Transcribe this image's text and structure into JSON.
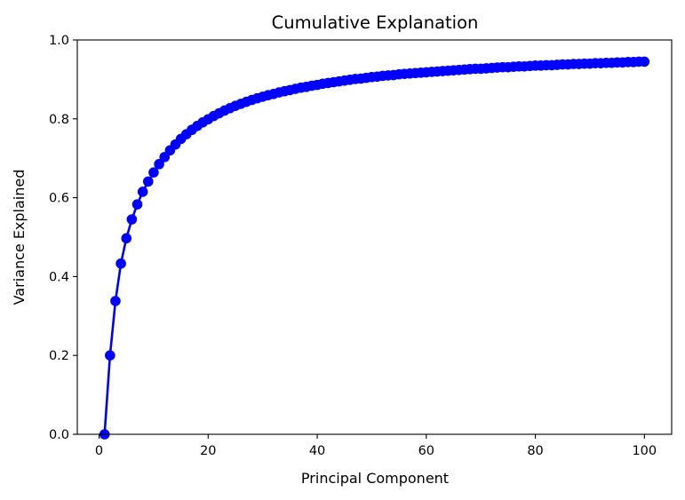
{
  "chart_data": {
    "type": "line",
    "title": "Cumulative Explanation",
    "xlabel": "Principal Component",
    "ylabel": "Variance Explained",
    "xlim": [
      -4,
      105
    ],
    "ylim": [
      0.0,
      1.0
    ],
    "x_ticks": [
      0,
      20,
      40,
      60,
      80,
      100
    ],
    "y_ticks": [
      0.0,
      0.2,
      0.4,
      0.6,
      0.8,
      1.0
    ],
    "x_tick_labels": [
      "0",
      "20",
      "40",
      "60",
      "80",
      "100"
    ],
    "y_tick_labels": [
      "0.0",
      "0.2",
      "0.4",
      "0.6",
      "0.8",
      "1.0"
    ],
    "grid": false,
    "legend": "none",
    "marker": "circle",
    "color": "#0000ff",
    "series": [
      {
        "x": [
          1,
          2,
          3,
          4,
          5,
          6,
          7,
          8,
          9,
          10,
          11,
          12,
          13,
          14,
          15,
          16,
          17,
          18,
          19,
          20,
          21,
          22,
          23,
          24,
          25,
          26,
          27,
          28,
          29,
          30,
          31,
          32,
          33,
          34,
          35,
          36,
          37,
          38,
          39,
          40,
          41,
          42,
          43,
          44,
          45,
          46,
          47,
          48,
          49,
          50,
          51,
          52,
          53,
          54,
          55,
          56,
          57,
          58,
          59,
          60,
          61,
          62,
          63,
          64,
          65,
          66,
          67,
          68,
          69,
          70,
          71,
          72,
          73,
          74,
          75,
          76,
          77,
          78,
          79,
          80,
          81,
          82,
          83,
          84,
          85,
          86,
          87,
          88,
          89,
          90,
          91,
          92,
          93,
          94,
          95,
          96,
          97,
          98,
          99,
          100
        ],
        "y": [
          0.0,
          0.2,
          0.338,
          0.433,
          0.497,
          0.545,
          0.583,
          0.615,
          0.641,
          0.664,
          0.685,
          0.703,
          0.72,
          0.735,
          0.749,
          0.761,
          0.772,
          0.782,
          0.791,
          0.799,
          0.807,
          0.814,
          0.821,
          0.827,
          0.833,
          0.838,
          0.843,
          0.848,
          0.852,
          0.856,
          0.86,
          0.863,
          0.867,
          0.87,
          0.873,
          0.876,
          0.879,
          0.881,
          0.884,
          0.886,
          0.889,
          0.891,
          0.893,
          0.895,
          0.897,
          0.899,
          0.901,
          0.902,
          0.904,
          0.906,
          0.907,
          0.909,
          0.91,
          0.911,
          0.913,
          0.914,
          0.915,
          0.916,
          0.917,
          0.918,
          0.919,
          0.92,
          0.921,
          0.922,
          0.923,
          0.924,
          0.925,
          0.926,
          0.927,
          0.927,
          0.928,
          0.929,
          0.93,
          0.931,
          0.931,
          0.932,
          0.933,
          0.933,
          0.934,
          0.935,
          0.935,
          0.936,
          0.936,
          0.937,
          0.938,
          0.938,
          0.939,
          0.939,
          0.94,
          0.94,
          0.941,
          0.941,
          0.942,
          0.942,
          0.943,
          0.943,
          0.944,
          0.944,
          0.945,
          0.945
        ]
      }
    ]
  }
}
